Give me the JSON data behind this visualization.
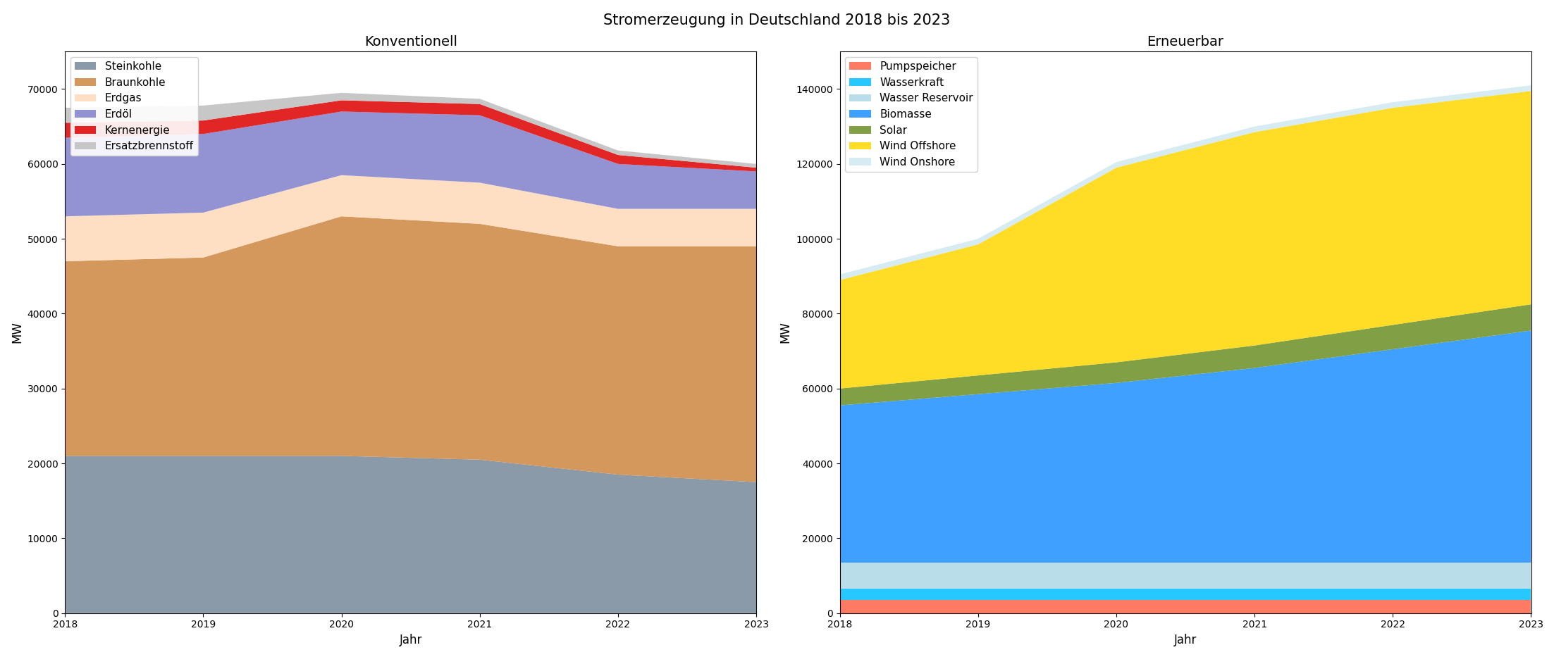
{
  "title": "Stromerzeugung in Deutschland 2018 bis 2023",
  "years": [
    2018,
    2019,
    2020,
    2021,
    2022,
    2023
  ],
  "konventionell": {
    "title": "Konventionell",
    "xlabel": "Jahr",
    "ylabel": "MW",
    "ylim": [
      0,
      75000
    ],
    "yticks": [
      0,
      10000,
      20000,
      30000,
      40000,
      50000,
      60000,
      70000
    ],
    "layers": [
      {
        "label": "Steinkohle",
        "color": "#778899",
        "values": [
          21000,
          21000,
          21000,
          20500,
          18500,
          17500
        ]
      },
      {
        "label": "Braunkohle",
        "color": "#CD853F",
        "values": [
          26000,
          26500,
          32000,
          31500,
          30500,
          31500
        ]
      },
      {
        "label": "Erdgas",
        "color": "#FFDAB9",
        "values": [
          6000,
          6000,
          5500,
          5500,
          5000,
          5000
        ]
      },
      {
        "label": "Erdöl",
        "color": "#8080CC",
        "values": [
          10500,
          10500,
          8500,
          9000,
          6000,
          5000
        ]
      },
      {
        "label": "Kernenergie",
        "color": "#DD0000",
        "values": [
          2000,
          1800,
          1500,
          1500,
          1200,
          500
        ]
      },
      {
        "label": "Ersatzbrennstoff",
        "color": "#BEBEBE",
        "values": [
          2000,
          2000,
          1000,
          700,
          600,
          500
        ]
      }
    ]
  },
  "erneuerbar": {
    "title": "Erneuerbar",
    "xlabel": "Jahr",
    "ylabel": "MW",
    "ylim": [
      0,
      150000
    ],
    "yticks": [
      0,
      20000,
      40000,
      60000,
      80000,
      100000,
      120000,
      140000
    ],
    "layers": [
      {
        "label": "Pumpspeicher",
        "color": "#FF6347",
        "values": [
          3500,
          3500,
          3500,
          3500,
          3500,
          3500
        ]
      },
      {
        "label": "Wasserkraft",
        "color": "#00BFFF",
        "values": [
          3000,
          3000,
          3000,
          3000,
          3000,
          3000
        ]
      },
      {
        "label": "Wasser Reservoir",
        "color": "#ADD8E6",
        "values": [
          7000,
          7000,
          7000,
          7000,
          7000,
          7000
        ]
      },
      {
        "label": "Biomasse",
        "color": "#1E90FF",
        "values": [
          42000,
          45000,
          48000,
          52000,
          57000,
          62000
        ]
      },
      {
        "label": "Solar",
        "color": "#6B8E23",
        "values": [
          4500,
          5000,
          5500,
          6000,
          6500,
          7000
        ]
      },
      {
        "label": "Wind Offshore",
        "color": "#FFD700",
        "values": [
          29000,
          35000,
          52000,
          57000,
          58000,
          57000
        ]
      },
      {
        "label": "Wind Onshore",
        "color": "#D0E8F0",
        "values": [
          1500,
          1500,
          1500,
          1500,
          1500,
          1500
        ]
      }
    ]
  }
}
